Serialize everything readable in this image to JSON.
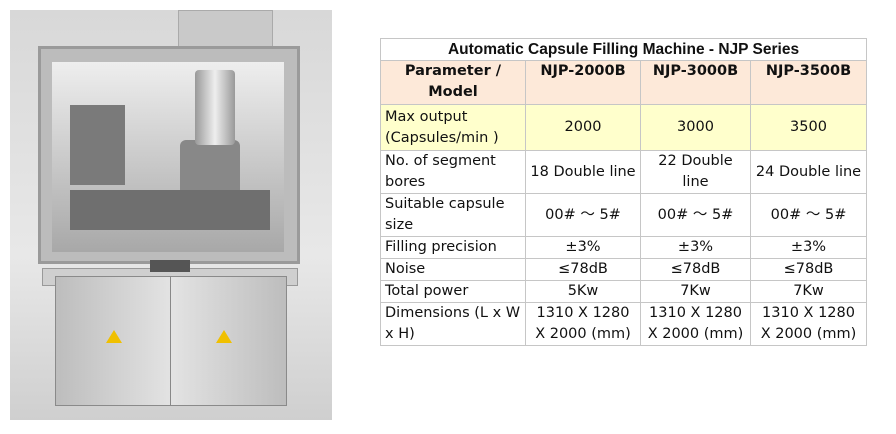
{
  "table": {
    "title": "Automatic Capsule Filling Machine  -  NJP Series",
    "headers": [
      "Parameter / Model",
      "NJP-2000B",
      "NJP-3000B",
      "NJP-3500B"
    ],
    "rows": [
      [
        "Max output (Capsules/min )",
        "2000",
        "3000",
        "3500"
      ],
      [
        "No. of segment bores",
        "18 Double line",
        "22 Double line",
        "24 Double line"
      ],
      [
        "Suitable capsule size",
        "00# ～ 5#",
        "00# ～ 5#",
        "00# ～ 5#"
      ],
      [
        "Filling precision",
        "±3%",
        "±3%",
        "±3%"
      ],
      [
        "Noise",
        "≤78dB",
        "≤78dB",
        "≤78dB"
      ],
      [
        "Total power",
        "5Kw",
        "7Kw",
        "7Kw"
      ],
      [
        "Dimensions (L x W x H)",
        "1310 X 1280 X 2000  (mm)",
        "1310 X 1280 X 2000 (mm)",
        "1310 X 1280 X 2000 (mm)"
      ]
    ]
  },
  "colors": {
    "title": "#1a1a7a",
    "header_bg": "#fde9d9",
    "highlight_row_bg": "#ffffcc"
  }
}
